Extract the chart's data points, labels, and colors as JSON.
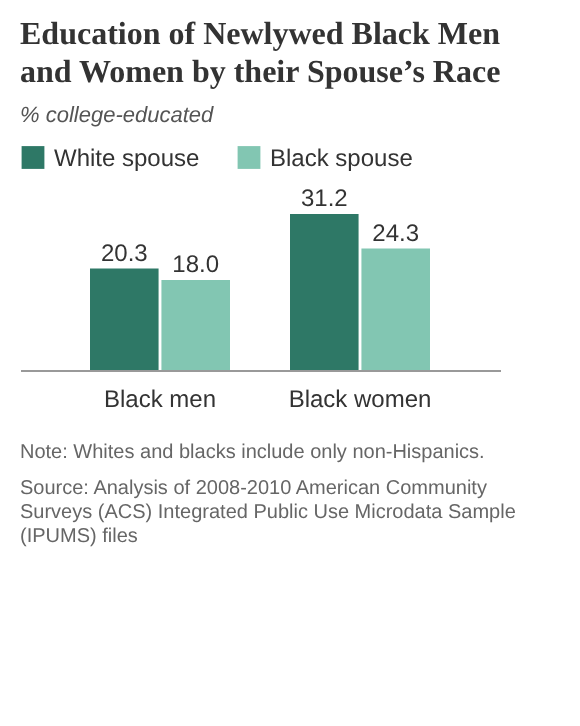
{
  "chart_data": {
    "type": "bar",
    "title": "Education of Newlywed Black Men and Women by their Spouse’s Race",
    "subtitle": "% college-educated",
    "categories": [
      "Black men",
      "Black women"
    ],
    "series": [
      {
        "name": "White spouse",
        "color": "#2e7866",
        "values": [
          20.3,
          31.2
        ],
        "value_labels": [
          "20.3",
          "31.2"
        ]
      },
      {
        "name": "Black spouse",
        "color": "#82c6b2",
        "values": [
          18.0,
          24.3
        ],
        "value_labels": [
          "18.0",
          "24.3"
        ]
      }
    ],
    "legend": "top",
    "tick_labels": "x",
    "annotations": [
      "Note: Whites and blacks include only non-Hispanics.",
      "Source: Analysis of 2008-2010 American Community Surveys (ACS) Integrated Public Use Microdata Sample (IPUMS) files"
    ]
  }
}
